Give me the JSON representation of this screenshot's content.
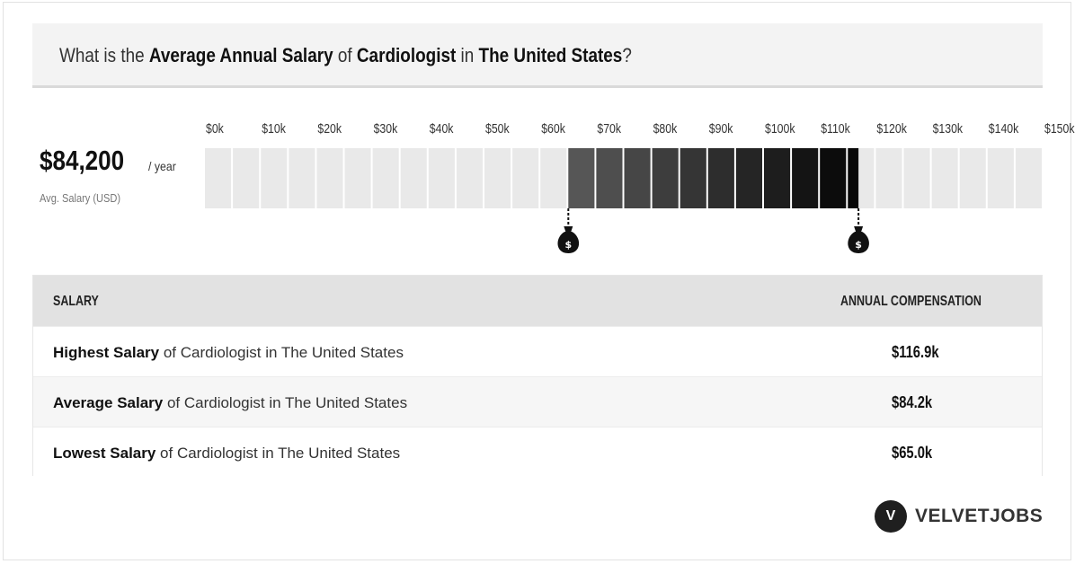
{
  "header": {
    "title_parts": [
      {
        "text": "What is the ",
        "bold": false
      },
      {
        "text": "Average Annual Salary",
        "bold": true
      },
      {
        "text": " of ",
        "bold": false
      },
      {
        "text": "Cardiologist",
        "bold": true
      },
      {
        "text": " in ",
        "bold": false
      },
      {
        "text": "The United States",
        "bold": true
      },
      {
        "text": "?",
        "bold": false
      }
    ]
  },
  "summary": {
    "value": "$84,200",
    "unit": "/ year",
    "caption": "Avg. Salary (USD)"
  },
  "chart_data": {
    "type": "bar",
    "categories": [
      "$0k",
      "$10k",
      "$20k",
      "$30k",
      "$40k",
      "$50k",
      "$60k",
      "$70k",
      "$80k",
      "$90k",
      "$100k",
      "$110k",
      "$120k",
      "$130k",
      "$140k",
      "$150k+"
    ],
    "x_range": [
      0,
      150
    ],
    "x_unit": "k USD",
    "range_low": 65.0,
    "range_high": 116.9,
    "average": 84.2,
    "low_marker_icon": "money-bag-icon",
    "high_marker_icon": "money-bag-icon",
    "colors": {
      "inactive": "#e9e9e9",
      "range_start": "#5a5a5a",
      "range_end": "#050505",
      "marker": "#111111"
    }
  },
  "table": {
    "headers": {
      "salary": "SALARY",
      "compensation": "ANNUAL COMPENSATION"
    },
    "rows": [
      {
        "label_bold": "Highest Salary",
        "label_rest": " of Cardiologist in The United States",
        "value": "$116.9k"
      },
      {
        "label_bold": "Average Salary",
        "label_rest": " of Cardiologist in The United States",
        "value": "$84.2k"
      },
      {
        "label_bold": "Lowest Salary",
        "label_rest": " of Cardiologist in The United States",
        "value": "$65.0k"
      }
    ]
  },
  "brand": {
    "logo_icon": "velvetjobs-logo-icon",
    "logo_letter": "V",
    "name": "VELVETJOBS"
  }
}
